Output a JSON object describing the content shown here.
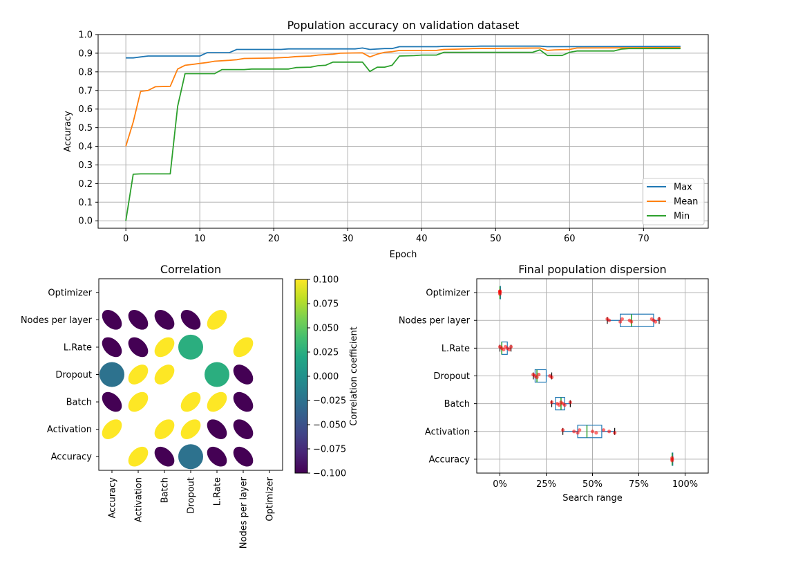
{
  "chart_data": [
    {
      "type": "line",
      "title": "Population accuracy on validation dataset",
      "xlabel": "Epoch",
      "ylabel": "Accuracy",
      "xlim": [
        -3.75,
        78.75
      ],
      "ylim": [
        -0.04,
        1.0
      ],
      "xticks": [
        0,
        10,
        20,
        30,
        40,
        50,
        60,
        70
      ],
      "xtick_labels": [
        "0",
        "10",
        "20",
        "30",
        "40",
        "50",
        "60",
        "70"
      ],
      "yticks": [
        0.0,
        0.1,
        0.2,
        0.3,
        0.4,
        0.5,
        0.6,
        0.7,
        0.8,
        0.9,
        1.0
      ],
      "ytick_labels": [
        "0.0",
        "0.1",
        "0.2",
        "0.3",
        "0.4",
        "0.5",
        "0.6",
        "0.7",
        "0.8",
        "0.9",
        "1.0"
      ],
      "grid": true,
      "legend": "lower-right",
      "series": [
        {
          "name": "Max",
          "color": "#1f77b4",
          "points": [
            [
              0,
              0.875
            ],
            [
              1,
              0.875
            ],
            [
              2,
              0.88
            ],
            [
              3,
              0.885
            ],
            [
              10,
              0.885
            ],
            [
              11,
              0.903
            ],
            [
              14,
              0.903
            ],
            [
              15,
              0.92
            ],
            [
              21,
              0.92
            ],
            [
              22,
              0.923
            ],
            [
              31,
              0.923
            ],
            [
              32,
              0.928
            ],
            [
              33,
              0.92
            ],
            [
              35,
              0.925
            ],
            [
              36,
              0.925
            ],
            [
              37,
              0.935
            ],
            [
              42,
              0.935
            ],
            [
              43,
              0.937
            ],
            [
              47,
              0.937
            ],
            [
              48,
              0.938
            ],
            [
              56,
              0.938
            ],
            [
              57,
              0.935
            ],
            [
              75,
              0.937
            ]
          ]
        },
        {
          "name": "Mean",
          "color": "#ff7f0e",
          "points": [
            [
              0,
              0.4
            ],
            [
              1,
              0.53
            ],
            [
              2,
              0.695
            ],
            [
              3,
              0.7
            ],
            [
              4,
              0.72
            ],
            [
              6,
              0.722
            ],
            [
              7,
              0.815
            ],
            [
              8,
              0.835
            ],
            [
              9,
              0.84
            ],
            [
              10,
              0.845
            ],
            [
              11,
              0.85
            ],
            [
              12,
              0.857
            ],
            [
              14,
              0.862
            ],
            [
              15,
              0.865
            ],
            [
              16,
              0.872
            ],
            [
              20,
              0.874
            ],
            [
              22,
              0.878
            ],
            [
              23,
              0.882
            ],
            [
              25,
              0.885
            ],
            [
              26,
              0.89
            ],
            [
              28,
              0.895
            ],
            [
              29,
              0.9
            ],
            [
              32,
              0.902
            ],
            [
              33,
              0.88
            ],
            [
              34,
              0.895
            ],
            [
              35,
              0.905
            ],
            [
              36,
              0.908
            ],
            [
              37,
              0.915
            ],
            [
              42,
              0.915
            ],
            [
              43,
              0.92
            ],
            [
              45,
              0.922
            ],
            [
              47,
              0.925
            ],
            [
              56,
              0.928
            ],
            [
              57,
              0.915
            ],
            [
              58,
              0.918
            ],
            [
              60,
              0.92
            ],
            [
              61,
              0.928
            ],
            [
              75,
              0.93
            ]
          ]
        },
        {
          "name": "Min",
          "color": "#2ca02c",
          "points": [
            [
              0,
              0.0
            ],
            [
              1,
              0.25
            ],
            [
              2,
              0.252
            ],
            [
              6,
              0.252
            ],
            [
              7,
              0.615
            ],
            [
              8,
              0.79
            ],
            [
              12,
              0.79
            ],
            [
              13,
              0.812
            ],
            [
              16,
              0.812
            ],
            [
              17,
              0.815
            ],
            [
              22,
              0.815
            ],
            [
              23,
              0.823
            ],
            [
              25,
              0.825
            ],
            [
              26,
              0.833
            ],
            [
              27,
              0.835
            ],
            [
              28,
              0.852
            ],
            [
              32,
              0.852
            ],
            [
              33,
              0.802
            ],
            [
              34,
              0.825
            ],
            [
              35,
              0.825
            ],
            [
              36,
              0.835
            ],
            [
              37,
              0.885
            ],
            [
              39,
              0.887
            ],
            [
              40,
              0.89
            ],
            [
              42,
              0.89
            ],
            [
              43,
              0.905
            ],
            [
              55,
              0.905
            ],
            [
              56,
              0.918
            ],
            [
              57,
              0.888
            ],
            [
              59,
              0.888
            ],
            [
              60,
              0.905
            ],
            [
              61,
              0.912
            ],
            [
              66,
              0.912
            ],
            [
              67,
              0.922
            ],
            [
              68,
              0.925
            ],
            [
              75,
              0.925
            ]
          ]
        }
      ]
    },
    {
      "type": "heatmap",
      "title": "Correlation",
      "x_categories": [
        "Accuracy",
        "Activation",
        "Batch",
        "Dropout",
        "L.Rate",
        "Nodes per layer",
        "Optimizer"
      ],
      "y_categories": [
        "Optimizer",
        "Nodes per layer",
        "L.Rate",
        "Dropout",
        "Batch",
        "Activation",
        "Accuracy"
      ],
      "colorbar": {
        "label": "Correlation coefficient",
        "range": [
          -0.1,
          0.1
        ],
        "ticks": [
          0.1,
          0.075,
          0.05,
          0.025,
          0.0,
          -0.025,
          -0.05,
          -0.075,
          -0.1
        ],
        "tick_labels": [
          "0.100",
          "0.075",
          "0.050",
          "0.025",
          "0.000",
          "−0.025",
          "−0.050",
          "−0.075",
          "−0.100"
        ]
      },
      "cells": [
        {
          "row": "Nodes per layer",
          "col": "Accuracy",
          "value": -0.1
        },
        {
          "row": "Nodes per layer",
          "col": "Activation",
          "value": -0.1
        },
        {
          "row": "Nodes per layer",
          "col": "Batch",
          "value": -0.1
        },
        {
          "row": "Nodes per layer",
          "col": "Dropout",
          "value": -0.1
        },
        {
          "row": "Nodes per layer",
          "col": "L.Rate",
          "value": 0.1
        },
        {
          "row": "L.Rate",
          "col": "Accuracy",
          "value": -0.1
        },
        {
          "row": "L.Rate",
          "col": "Activation",
          "value": -0.1
        },
        {
          "row": "L.Rate",
          "col": "Batch",
          "value": 0.1
        },
        {
          "row": "L.Rate",
          "col": "Dropout",
          "value": 0.025
        },
        {
          "row": "L.Rate",
          "col": "Nodes per layer",
          "value": 0.1
        },
        {
          "row": "Dropout",
          "col": "Accuracy",
          "value": -0.025
        },
        {
          "row": "Dropout",
          "col": "Activation",
          "value": 0.1
        },
        {
          "row": "Dropout",
          "col": "Batch",
          "value": 0.1
        },
        {
          "row": "Dropout",
          "col": "L.Rate",
          "value": 0.025
        },
        {
          "row": "Dropout",
          "col": "Nodes per layer",
          "value": -0.1
        },
        {
          "row": "Batch",
          "col": "Accuracy",
          "value": -0.1
        },
        {
          "row": "Batch",
          "col": "Activation",
          "value": 0.1
        },
        {
          "row": "Batch",
          "col": "Dropout",
          "value": 0.1
        },
        {
          "row": "Batch",
          "col": "L.Rate",
          "value": 0.1
        },
        {
          "row": "Batch",
          "col": "Nodes per layer",
          "value": -0.1
        },
        {
          "row": "Activation",
          "col": "Accuracy",
          "value": 0.1
        },
        {
          "row": "Activation",
          "col": "Batch",
          "value": 0.1
        },
        {
          "row": "Activation",
          "col": "Dropout",
          "value": 0.1
        },
        {
          "row": "Activation",
          "col": "L.Rate",
          "value": -0.1
        },
        {
          "row": "Activation",
          "col": "Nodes per layer",
          "value": -0.1
        },
        {
          "row": "Accuracy",
          "col": "Activation",
          "value": 0.1
        },
        {
          "row": "Accuracy",
          "col": "Batch",
          "value": -0.1
        },
        {
          "row": "Accuracy",
          "col": "Dropout",
          "value": -0.025
        },
        {
          "row": "Accuracy",
          "col": "L.Rate",
          "value": -0.1
        },
        {
          "row": "Accuracy",
          "col": "Nodes per layer",
          "value": -0.1
        }
      ]
    },
    {
      "type": "box",
      "title": "Final population dispersion",
      "xlabel": "Search range",
      "xlim": [
        -0.125,
        1.125
      ],
      "xticks": [
        0,
        0.25,
        0.5,
        0.75,
        1.0
      ],
      "xtick_labels": [
        "0%",
        "25%",
        "50%",
        "75%",
        "100%"
      ],
      "grid": true,
      "box_color": "#1f77b4",
      "median_color": "#2ca02c",
      "point_color": "#ff0000",
      "categories": [
        "Optimizer",
        "Nodes per layer",
        "L.Rate",
        "Dropout",
        "Batch",
        "Activation",
        "Accuracy"
      ],
      "boxes": [
        {
          "category": "Optimizer",
          "whisker_low": 0.0,
          "q1": 0.0,
          "median": 0.0,
          "q3": 0.0,
          "whisker_high": 0.0,
          "points": [
            0.0,
            0.0,
            0.0,
            0.0
          ]
        },
        {
          "category": "Nodes per layer",
          "whisker_low": 0.58,
          "q1": 0.65,
          "median": 0.71,
          "q3": 0.83,
          "whisker_high": 0.86,
          "points": [
            0.58,
            0.59,
            0.65,
            0.66,
            0.7,
            0.71,
            0.82,
            0.83,
            0.84,
            0.86
          ]
        },
        {
          "category": "L.Rate",
          "whisker_low": 0.0,
          "q1": 0.01,
          "median": 0.01,
          "q3": 0.04,
          "whisker_high": 0.06,
          "points": [
            0.0,
            0.01,
            0.02,
            0.03,
            0.04,
            0.05,
            0.06
          ]
        },
        {
          "category": "Dropout",
          "whisker_low": 0.18,
          "q1": 0.19,
          "median": 0.2,
          "q3": 0.25,
          "whisker_high": 0.28,
          "points": [
            0.18,
            0.19,
            0.2,
            0.21,
            0.27,
            0.28
          ]
        },
        {
          "category": "Batch",
          "whisker_low": 0.28,
          "q1": 0.3,
          "median": 0.33,
          "q3": 0.35,
          "whisker_high": 0.38,
          "points": [
            0.28,
            0.31,
            0.32,
            0.33,
            0.34,
            0.35,
            0.38
          ]
        },
        {
          "category": "Activation",
          "whisker_low": 0.34,
          "q1": 0.42,
          "median": 0.47,
          "q3": 0.55,
          "whisker_high": 0.62,
          "points": [
            0.34,
            0.4,
            0.42,
            0.43,
            0.5,
            0.52,
            0.56,
            0.59,
            0.62
          ]
        },
        {
          "category": "Accuracy",
          "whisker_low": 0.93,
          "q1": 0.93,
          "median": 0.93,
          "q3": 0.93,
          "whisker_high": 0.93,
          "points": [
            0.93,
            0.93,
            0.93
          ]
        }
      ]
    }
  ]
}
